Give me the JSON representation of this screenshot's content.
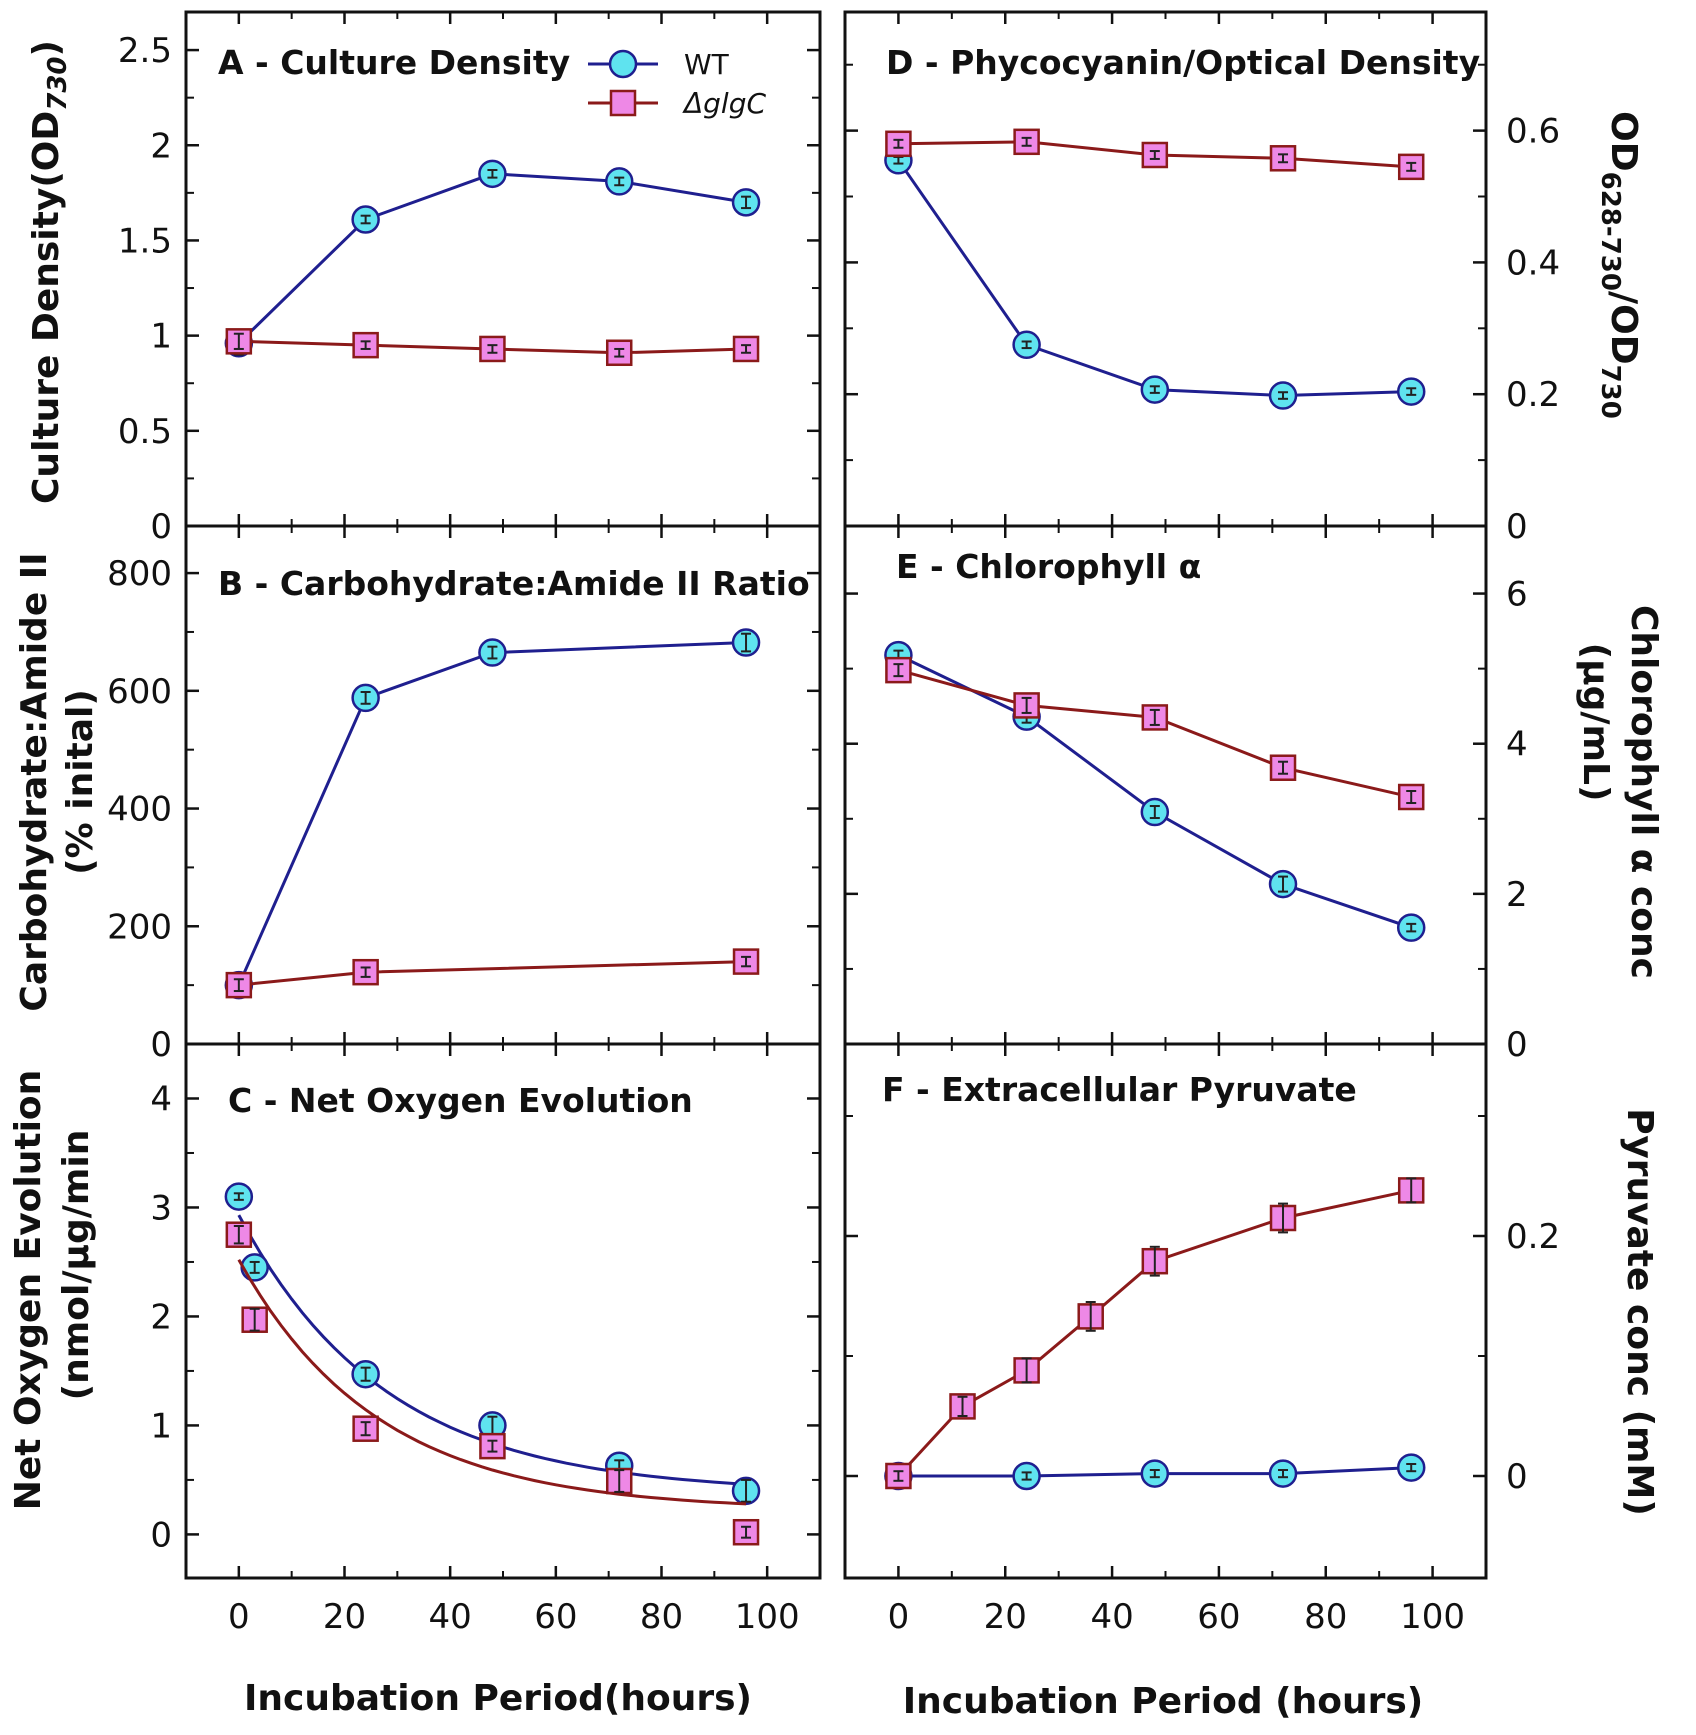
{
  "colors": {
    "wt_line": "#1f1f8f",
    "wt_fill": "#5fe3ef",
    "mut_line": "#8b1a1a",
    "mut_fill": "#ee88e6",
    "axes": "#111111"
  },
  "legend": {
    "wt": "WT",
    "mutant": "ΔglgC"
  },
  "x_axis_title_left": "Incubation Period(hours)",
  "x_axis_title_right": "Incubation Period (hours)",
  "chart_data": [
    {
      "id": "A",
      "type": "line",
      "title": "A - Culture Density",
      "ylabel": "Culture Density(OD730)",
      "ylabel_main": "Culture Density(OD",
      "ylabel_sub": "730",
      "ylabel_end": ")",
      "ylim": [
        0,
        2.7
      ],
      "yticks": [
        0,
        0.5,
        1,
        1.5,
        2,
        2.5
      ],
      "ytick_labels": [
        "0",
        "0.5",
        "1",
        "1.5",
        "2",
        "2.5"
      ],
      "xlim": [
        -10,
        110
      ],
      "xticks": [
        0,
        20,
        40,
        60,
        80,
        100
      ],
      "series": [
        {
          "name": "WT",
          "x": [
            0,
            24,
            48,
            72,
            96
          ],
          "y": [
            0.96,
            1.61,
            1.85,
            1.81,
            1.7
          ],
          "err": [
            0.06,
            0.02,
            0.02,
            0.02,
            0.03
          ]
        },
        {
          "name": "ΔglgC",
          "x": [
            0,
            24,
            48,
            72,
            96
          ],
          "y": [
            0.97,
            0.95,
            0.93,
            0.91,
            0.93
          ],
          "err": [
            0.04,
            0.02,
            0.02,
            0.02,
            0.02
          ]
        }
      ]
    },
    {
      "id": "B",
      "type": "line",
      "title": "B - Carbohydrate:Amide II Ratio",
      "ylabel": "Carbohydrate:Amide II (% inital)",
      "ylabel_line1": "Carbohydrate:Amide II",
      "ylabel_line2": "(% inital)",
      "ylim": [
        0,
        880
      ],
      "yticks": [
        0,
        200,
        400,
        600,
        800
      ],
      "ytick_labels": [
        "0",
        "200",
        "400",
        "600",
        "800"
      ],
      "xlim": [
        -10,
        110
      ],
      "xticks": [
        0,
        20,
        40,
        60,
        80,
        100
      ],
      "series": [
        {
          "name": "WT",
          "x": [
            0,
            24,
            48,
            96
          ],
          "y": [
            100,
            588,
            665,
            682
          ],
          "err": [
            5,
            10,
            10,
            15
          ]
        },
        {
          "name": "ΔglgC",
          "x": [
            0,
            24,
            96
          ],
          "y": [
            100,
            122,
            140
          ],
          "err": [
            10,
            8,
            8
          ]
        }
      ]
    },
    {
      "id": "C",
      "type": "scatter",
      "title": "C - Net Oxygen Evolution",
      "ylabel": "Net Oxygen Evolution (nmol/μg/min)",
      "ylabel_line1": "Net Oxygen Evolution",
      "ylabel_line2": "(nmol/μg/min",
      "ylim": [
        -0.4,
        4.5
      ],
      "yticks": [
        0,
        1,
        2,
        3,
        4
      ],
      "ytick_labels": [
        "0",
        "1",
        "2",
        "3",
        "4"
      ],
      "xlim": [
        -10,
        110
      ],
      "xticks": [
        0,
        20,
        40,
        60,
        80,
        100
      ],
      "xtick_labels": [
        "0",
        "20",
        "40",
        "60",
        "80",
        "100"
      ],
      "series": [
        {
          "name": "WT",
          "x": [
            0,
            3,
            24,
            48,
            72,
            96
          ],
          "y": [
            3.1,
            2.45,
            1.47,
            1.0,
            0.63,
            0.4
          ],
          "err": [
            0.03,
            0.05,
            0.06,
            0.08,
            0.05,
            0.1
          ],
          "fit": {
            "a": 0.38,
            "b": 2.55,
            "k": 0.036
          }
        },
        {
          "name": "ΔglgC",
          "x": [
            0,
            3,
            24,
            48,
            72,
            96
          ],
          "y": [
            2.75,
            1.97,
            0.97,
            0.81,
            0.49,
            0.02
          ],
          "err": [
            0.08,
            0.1,
            0.06,
            0.05,
            0.1,
            0.05
          ],
          "fit": {
            "a": 0.22,
            "b": 2.3,
            "k": 0.038
          }
        }
      ]
    },
    {
      "id": "D",
      "type": "line",
      "title": "D - Phycocyanin/Optical Density",
      "ylabel": "OD628-730/OD730",
      "ylabel_a": "OD",
      "ylabel_a_sub": "628-730",
      "ylabel_b": "/OD",
      "ylabel_b_sub": "730",
      "ylim": [
        0,
        0.78
      ],
      "yticks": [
        0,
        0.2,
        0.4,
        0.6
      ],
      "ytick_labels": [
        "0",
        "0.2",
        "0.4",
        "0.6"
      ],
      "xlim": [
        -10,
        110
      ],
      "xticks": [
        0,
        20,
        40,
        60,
        80,
        100
      ],
      "series": [
        {
          "name": "WT",
          "x": [
            0,
            24,
            48,
            72,
            96
          ],
          "y": [
            0.555,
            0.275,
            0.207,
            0.198,
            0.204
          ],
          "err": [
            0.005,
            0.005,
            0.005,
            0.005,
            0.005
          ]
        },
        {
          "name": "ΔglgC",
          "x": [
            0,
            24,
            48,
            72,
            96
          ],
          "y": [
            0.58,
            0.583,
            0.563,
            0.558,
            0.545
          ],
          "err": [
            0.006,
            0.006,
            0.006,
            0.006,
            0.006
          ]
        }
      ]
    },
    {
      "id": "E",
      "type": "line",
      "title": "E - Chlorophyll α",
      "ylabel": "Chlorophyll α conc (μg/mL)",
      "ylabel_line1": "Chlorophyll α conc",
      "ylabel_line2": "(μg/mL)",
      "ylim": [
        0,
        6.9
      ],
      "yticks": [
        0,
        2,
        4,
        6
      ],
      "ytick_labels": [
        "0",
        "2",
        "4",
        "6"
      ],
      "xlim": [
        -10,
        110
      ],
      "xticks": [
        0,
        20,
        40,
        60,
        80,
        100
      ],
      "series": [
        {
          "name": "WT",
          "x": [
            0,
            24,
            48,
            72,
            96
          ],
          "y": [
            5.18,
            4.36,
            3.09,
            2.13,
            1.55
          ],
          "err": [
            0.06,
            0.08,
            0.08,
            0.1,
            0.05
          ]
        },
        {
          "name": "ΔglgC",
          "x": [
            0,
            24,
            48,
            72,
            96
          ],
          "y": [
            4.98,
            4.51,
            4.35,
            3.68,
            3.29
          ],
          "err": [
            0.08,
            0.1,
            0.1,
            0.08,
            0.08
          ]
        }
      ]
    },
    {
      "id": "F",
      "type": "line",
      "title": "F - Extracellular Pyruvate",
      "ylabel": "Pyruvate conc (mM)",
      "ylabel_text": "Pyruvate conc  (mM)",
      "ylim": [
        -0.085,
        0.36
      ],
      "yticks": [
        0,
        0.2
      ],
      "ytick_labels": [
        "0",
        "0.2"
      ],
      "xlim": [
        -10,
        110
      ],
      "xticks": [
        0,
        20,
        40,
        60,
        80,
        100
      ],
      "xtick_labels": [
        "0",
        "20",
        "40",
        "60",
        "80",
        "100"
      ],
      "series": [
        {
          "name": "WT",
          "x": [
            0,
            24,
            48,
            72,
            96
          ],
          "y": [
            0.0,
            0.0,
            0.002,
            0.002,
            0.007
          ],
          "err": [
            0.003,
            0.003,
            0.003,
            0.003,
            0.003
          ]
        },
        {
          "name": "ΔglgC",
          "x": [
            0,
            12,
            24,
            36,
            48,
            72,
            96
          ],
          "y": [
            0.0,
            0.058,
            0.088,
            0.133,
            0.179,
            0.215,
            0.238
          ],
          "err": [
            0.004,
            0.008,
            0.01,
            0.012,
            0.012,
            0.012,
            0.01
          ]
        }
      ]
    }
  ]
}
